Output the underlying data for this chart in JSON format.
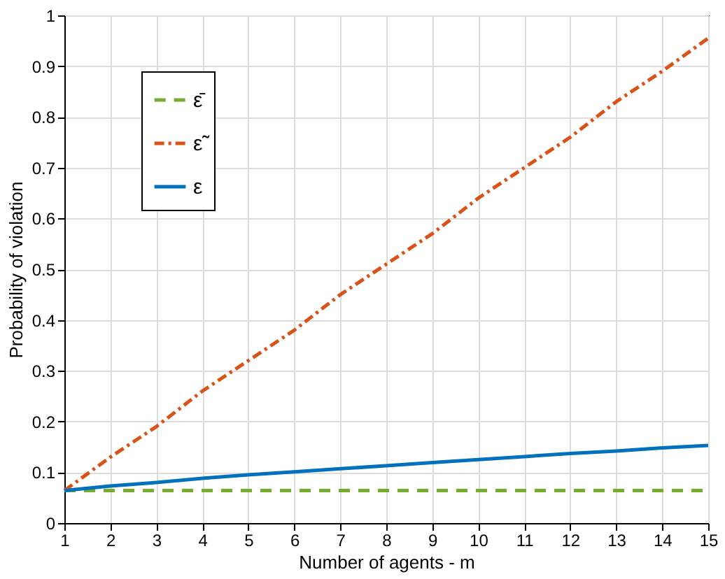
{
  "chart_data": {
    "type": "line",
    "xlabel": "Number of agents - m",
    "ylabel": "Probability of violation",
    "x": [
      1,
      2,
      3,
      4,
      5,
      6,
      7,
      8,
      9,
      10,
      11,
      12,
      13,
      14,
      15
    ],
    "series": [
      {
        "name": "ε̄",
        "color": "#77ac30",
        "line_style": "dashed",
        "values": [
          0.064,
          0.064,
          0.064,
          0.064,
          0.064,
          0.064,
          0.064,
          0.064,
          0.064,
          0.064,
          0.064,
          0.064,
          0.064,
          0.064,
          0.064
        ]
      },
      {
        "name": "ε̃",
        "color": "#d95319",
        "line_style": "dotted",
        "values": [
          0.064,
          0.13,
          0.19,
          0.26,
          0.32,
          0.38,
          0.45,
          0.51,
          0.57,
          0.64,
          0.7,
          0.76,
          0.83,
          0.89,
          0.955
        ]
      },
      {
        "name": "ε",
        "color": "#0072bd",
        "line_style": "solid",
        "values": [
          0.064,
          0.073,
          0.08,
          0.088,
          0.095,
          0.101,
          0.107,
          0.113,
          0.119,
          0.125,
          0.131,
          0.137,
          0.142,
          0.148,
          0.153
        ]
      }
    ],
    "xlim": [
      1,
      15
    ],
    "xticks": [
      1,
      2,
      3,
      4,
      5,
      6,
      7,
      8,
      9,
      10,
      11,
      12,
      13,
      14,
      15
    ],
    "ylim": [
      0,
      1
    ],
    "yticks": [
      0,
      0.1,
      0.2,
      0.3,
      0.4,
      0.5,
      0.6,
      0.7,
      0.8,
      0.9,
      1
    ],
    "grid": true,
    "legend": "top left",
    "marker": "none"
  }
}
